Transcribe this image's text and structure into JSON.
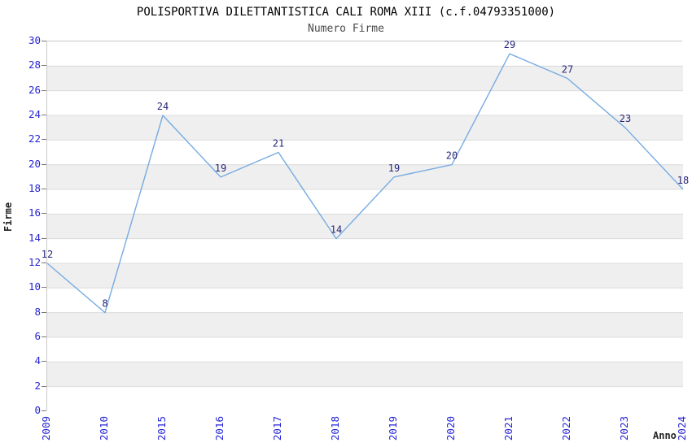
{
  "chart_data": {
    "type": "line",
    "title": "POLISPORTIVA DILETTANTISTICA CALI ROMA XIII (c.f.04793351000)",
    "subtitle": "Numero Firme",
    "xlabel": "Anno",
    "ylabel": "Firme",
    "categories": [
      "2009",
      "2010",
      "2015",
      "2016",
      "2017",
      "2018",
      "2019",
      "2020",
      "2021",
      "2022",
      "2023",
      "2024"
    ],
    "values": [
      12,
      8,
      24,
      19,
      21,
      14,
      19,
      20,
      29,
      27,
      23,
      18
    ],
    "ylim": [
      0,
      30
    ],
    "yticks": [
      0,
      2,
      4,
      6,
      8,
      10,
      12,
      14,
      16,
      18,
      20,
      22,
      24,
      26,
      28,
      30
    ],
    "grid": "horizontal-bands",
    "legend": "none",
    "point_labels_shown": true
  },
  "colors": {
    "line": "#76abe2",
    "tick_label": "#2424d6",
    "value_label": "#26267a",
    "stripe_gray": "#efefef",
    "stripe_white": "#ffffff",
    "grid_line": "#dcdcdc",
    "plot_border": "#c9c9c9",
    "title": "#000000",
    "subtitle": "#4a4a4a",
    "axis_title": "#222222"
  }
}
